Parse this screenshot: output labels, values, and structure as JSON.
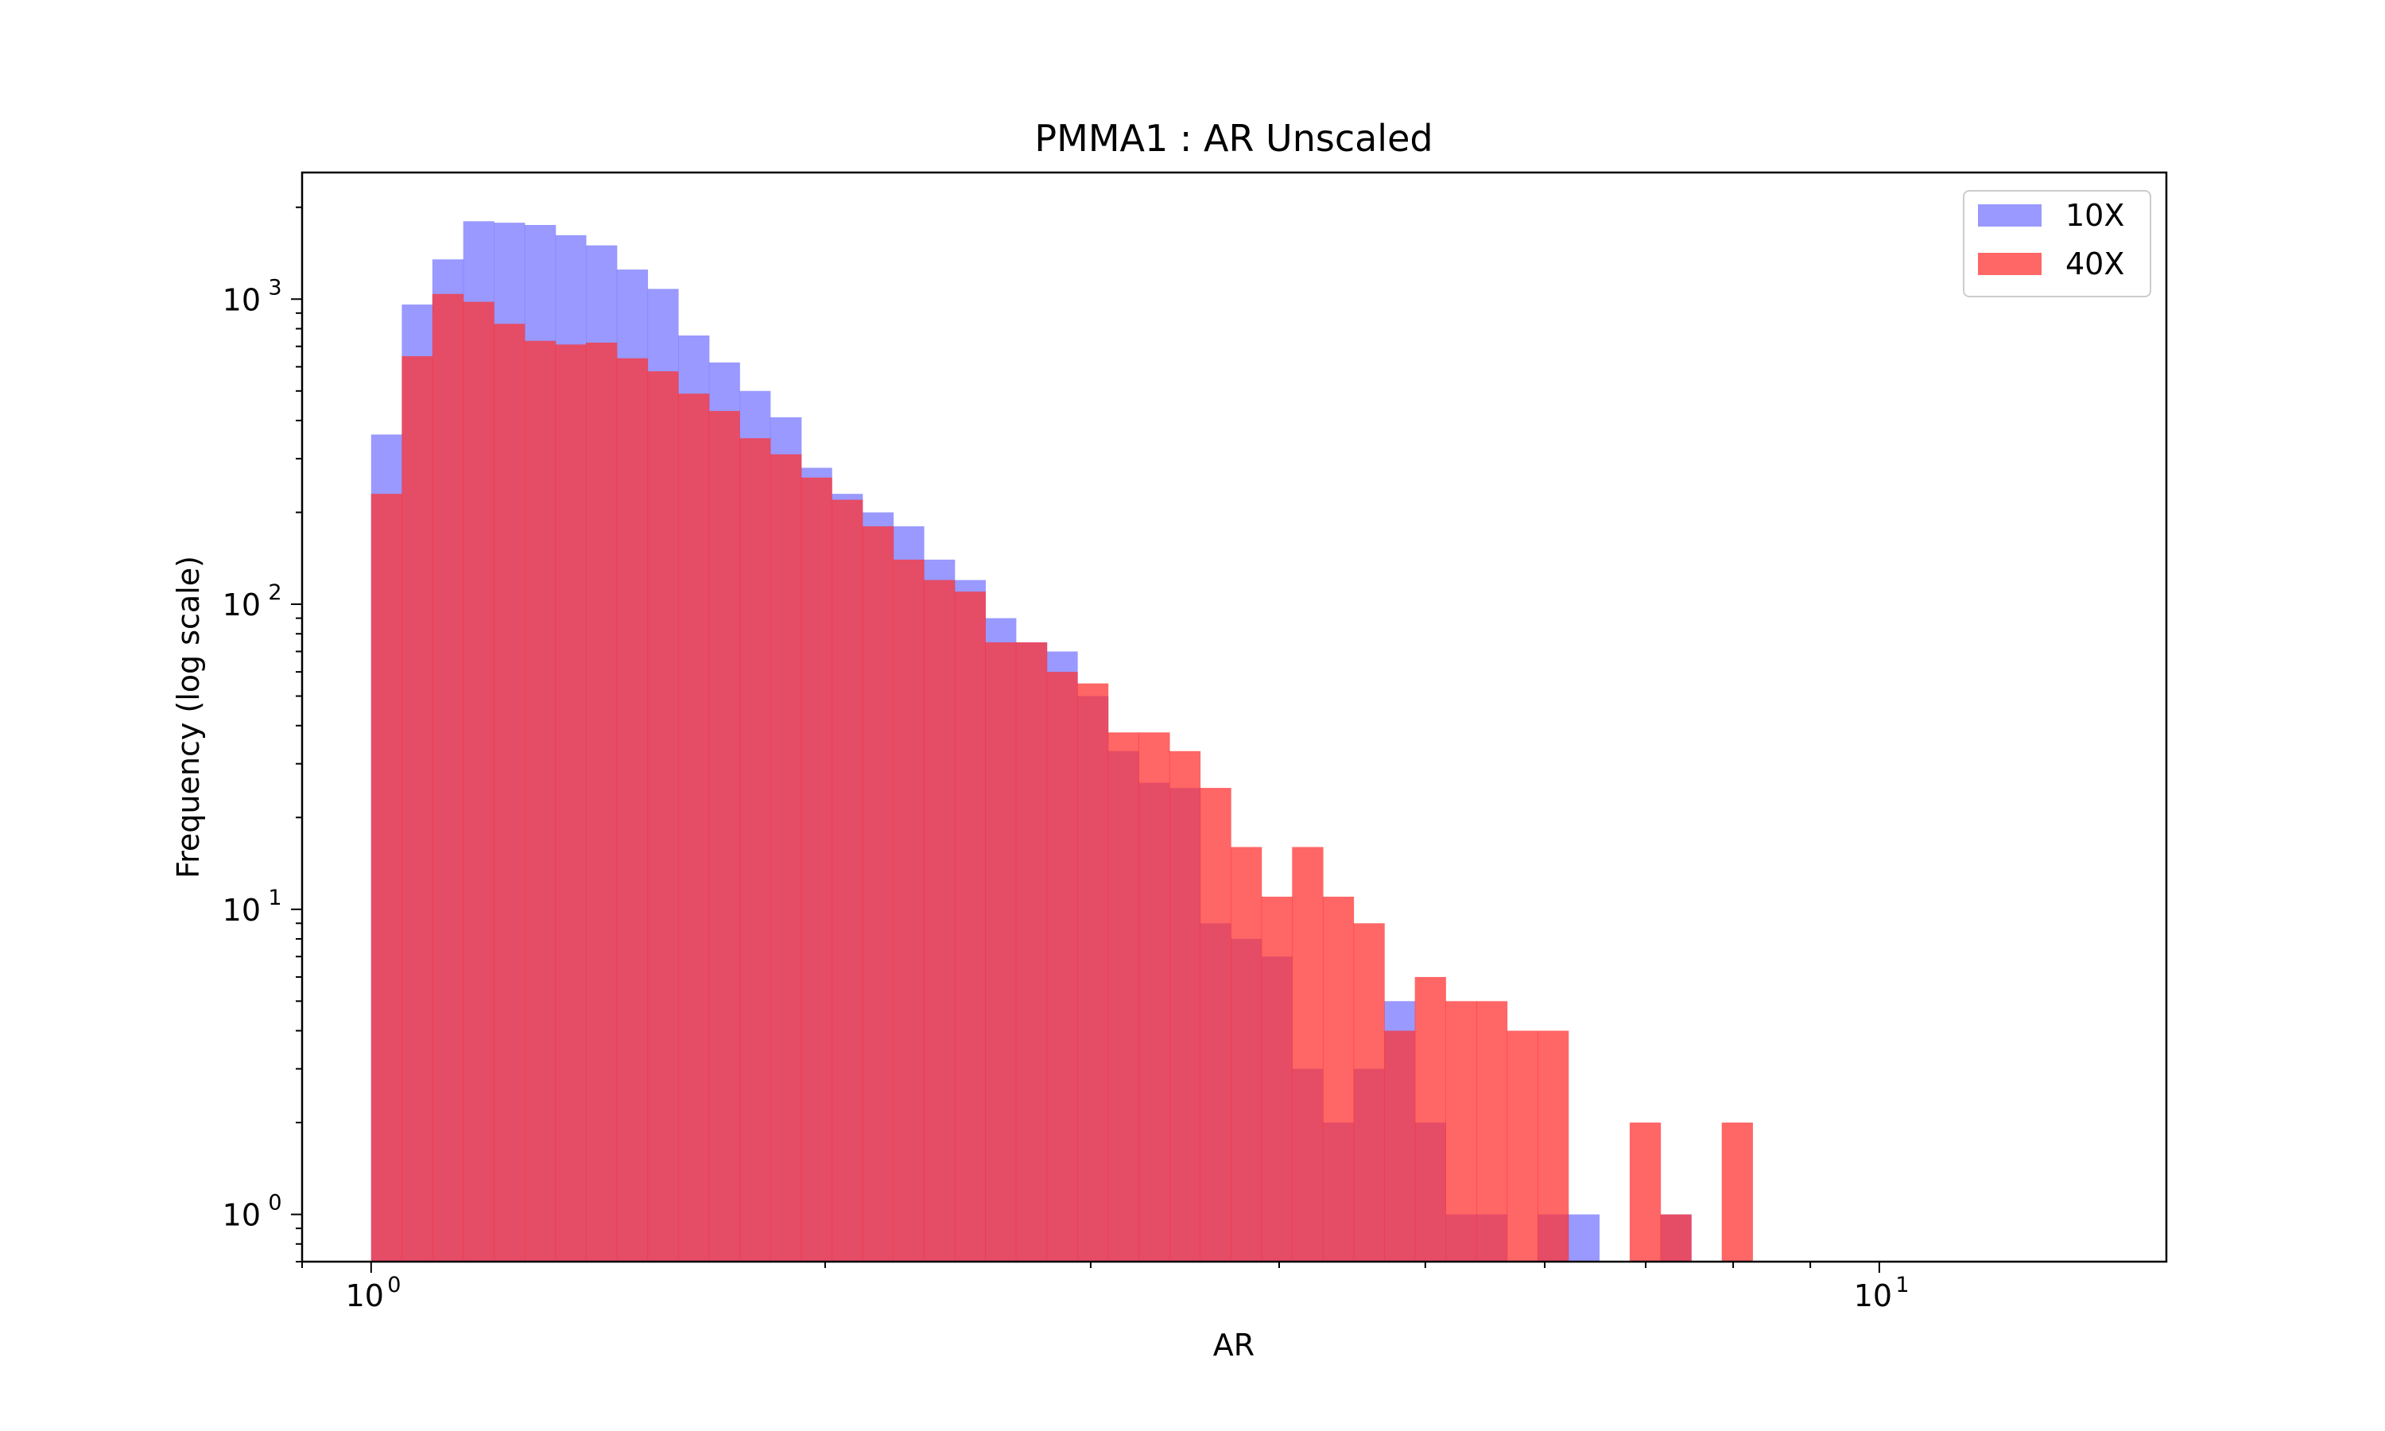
{
  "chart_data": {
    "type": "bar",
    "title": "PMMA1 : AR Unscaled",
    "xlabel": "AR",
    "ylabel": "Frequency (log scale)",
    "x_scale": "log",
    "y_scale": "log",
    "xlim": [
      0.9,
      15.5
    ],
    "ylim": [
      0.7,
      2600
    ],
    "grid": false,
    "legend": "top-right",
    "x_tick_labels": [
      {
        "value": 1,
        "base": "10",
        "exp": "0"
      },
      {
        "value": 10,
        "base": "10",
        "exp": "1"
      }
    ],
    "y_tick_labels": [
      {
        "value": 1,
        "base": "10",
        "exp": "0"
      },
      {
        "value": 10,
        "base": "10",
        "exp": "1"
      },
      {
        "value": 100,
        "base": "10",
        "exp": "2"
      },
      {
        "value": 1000,
        "base": "10",
        "exp": "3"
      }
    ],
    "bin_edges": [
      1.0,
      1.048,
      1.098,
      1.151,
      1.206,
      1.264,
      1.325,
      1.388,
      1.455,
      1.525,
      1.598,
      1.675,
      1.755,
      1.839,
      1.928,
      2.02,
      2.117,
      2.219,
      2.325,
      2.437,
      2.554,
      2.676,
      2.805,
      2.939,
      3.08,
      3.228,
      3.383,
      3.545,
      3.715,
      3.893,
      4.08,
      4.276,
      4.481,
      4.696,
      4.921,
      5.157,
      5.405,
      5.664,
      5.935,
      6.22,
      6.519,
      6.831,
      7.159,
      7.502,
      7.862,
      8.239,
      8.634,
      9.049,
      9.482,
      9.938,
      10.414,
      10.914
    ],
    "series": [
      {
        "name": "10X",
        "color": "#7777ff",
        "opacity": 0.75,
        "values": [
          360,
          960,
          1350,
          1800,
          1780,
          1750,
          1620,
          1500,
          1250,
          1080,
          760,
          620,
          500,
          410,
          280,
          230,
          200,
          180,
          140,
          120,
          90,
          75,
          70,
          50,
          33,
          26,
          25,
          9,
          8,
          7,
          3,
          2,
          3,
          5,
          2,
          1,
          1,
          0,
          1,
          1,
          0,
          0,
          1,
          0,
          0,
          0,
          0,
          0,
          0,
          0,
          0
        ]
      },
      {
        "name": "40X",
        "color": "#ff3333",
        "opacity": 0.75,
        "values": [
          230,
          650,
          1040,
          980,
          830,
          730,
          710,
          720,
          640,
          580,
          490,
          430,
          350,
          310,
          260,
          220,
          180,
          140,
          120,
          110,
          75,
          75,
          60,
          55,
          38,
          38,
          33,
          25,
          16,
          11,
          16,
          11,
          9,
          4,
          6,
          5,
          5,
          4,
          4,
          0,
          0,
          2,
          1,
          0,
          2,
          0,
          0,
          0,
          0,
          0,
          0
        ]
      }
    ]
  }
}
